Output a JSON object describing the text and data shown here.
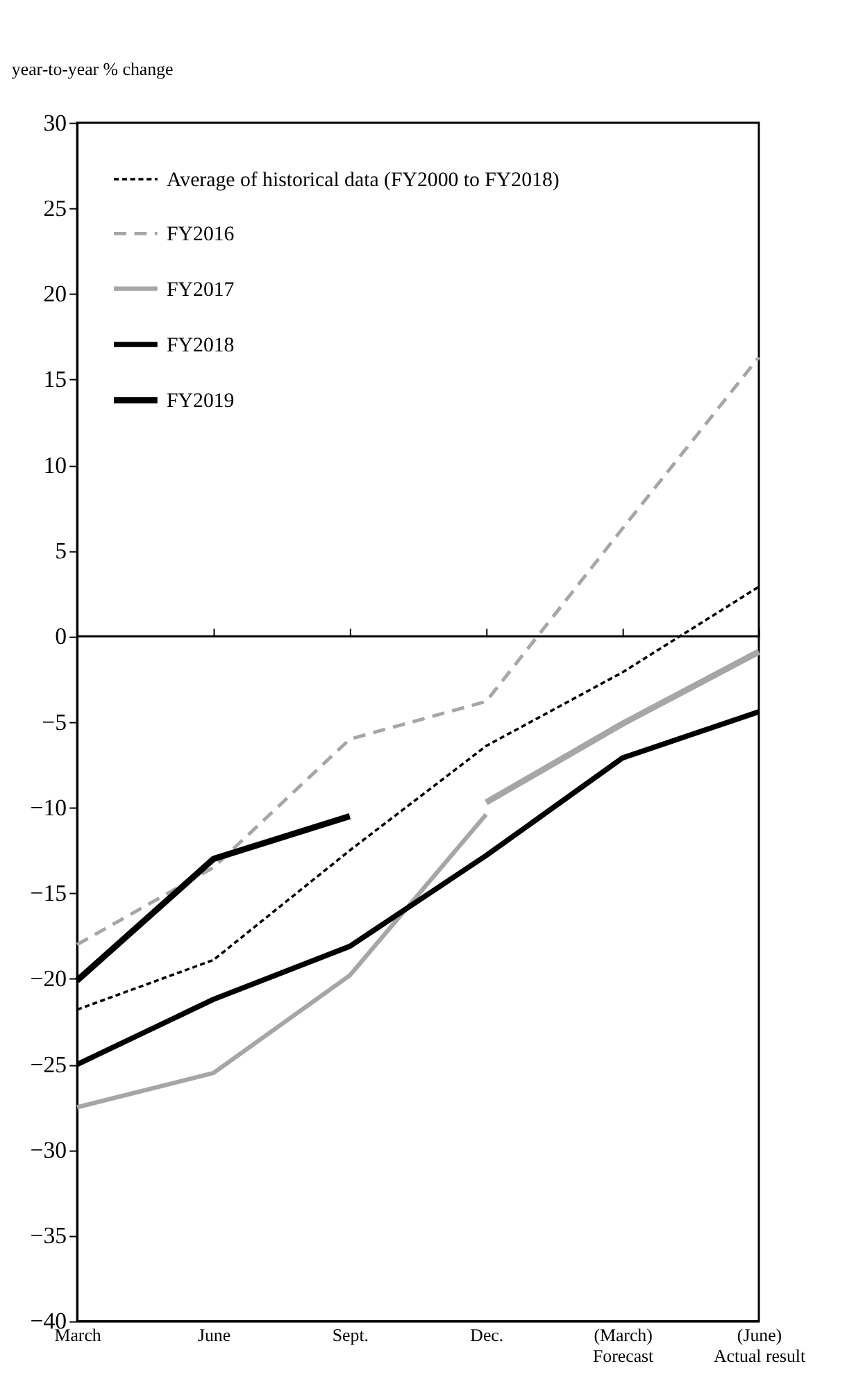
{
  "chart_data": {
    "type": "line",
    "ylabel": "year-to-year % change",
    "categories": [
      "March",
      "June",
      "Sept.",
      "Dec.",
      "(March)\nForecast",
      "(June)\nActual result"
    ],
    "series": [
      {
        "name": "Average of historical data (FY2000 to FY2018)",
        "color": "#000000",
        "line_style": "dashed",
        "values": [
          -21.8,
          -18.9,
          -12.5,
          -6.4,
          -2.1,
          2.9
        ]
      },
      {
        "name": "FY2016",
        "color": "#a6a6a6",
        "line_style": "dashed",
        "values": [
          -18.0,
          -13.5,
          -6.0,
          -3.8,
          6.3,
          16.3
        ]
      },
      {
        "name": "FY2017",
        "color": "#a6a6a6",
        "line_style": "solid",
        "values": [
          -27.5,
          -25.5,
          -19.8,
          -10.4,
          null,
          null
        ]
      },
      {
        "color": "#a6a6a6",
        "line_style": "solid",
        "values": [
          null,
          null,
          null,
          -9.7,
          -5.1,
          -0.9
        ]
      },
      {
        "name": "FY2018",
        "color": "#000000",
        "line_style": "solid",
        "values": [
          -25.0,
          -21.2,
          -18.1,
          -12.8,
          -7.1,
          -4.4
        ]
      },
      {
        "name": "FY2019",
        "color": "#000000",
        "line_style": "solid",
        "values": [
          -20.1,
          -13.0,
          -10.5,
          null,
          null,
          null
        ]
      }
    ],
    "ylim": [
      -40,
      30
    ],
    "yticks": [
      -40,
      -35,
      -30,
      -25,
      -20,
      -15,
      -10,
      -5,
      0,
      5,
      10,
      15,
      20,
      25,
      30
    ],
    "ref_lines": [
      {
        "axis": "y",
        "value": 0,
        "color": "#000000",
        "line_style": "solid"
      }
    ],
    "grid": false,
    "legend": "top left",
    "marker": "none"
  }
}
